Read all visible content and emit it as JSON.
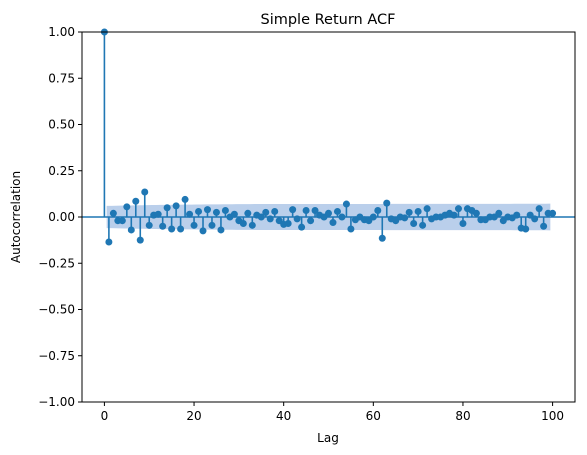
{
  "chart_data": {
    "type": "stem",
    "title": "Simple Return ACF",
    "xlabel": "Lag",
    "ylabel": "Autocorrelation",
    "xlim": [
      -5,
      105
    ],
    "ylim": [
      -1.0,
      1.0
    ],
    "xticks": [
      0,
      20,
      40,
      60,
      80,
      100
    ],
    "yticks": [
      -1.0,
      -0.75,
      -0.5,
      -0.25,
      0.0,
      0.25,
      0.5,
      0.75,
      1.0
    ],
    "xtick_labels": [
      "0",
      "20",
      "40",
      "60",
      "80",
      "100"
    ],
    "ytick_labels": [
      "−1.00",
      "−0.75",
      "−0.50",
      "−0.25",
      "0.00",
      "0.25",
      "0.50",
      "0.75",
      "1.00"
    ],
    "grid": false,
    "legend": "none",
    "colors": {
      "stem": "#1f77b4",
      "confidence_band": "#aec7e8"
    },
    "confidence_band": {
      "start_lag": 1,
      "end_lag": 100,
      "upper": [
        0.06,
        0.065,
        0.068,
        0.07,
        0.07,
        0.07,
        0.071,
        0.071,
        0.071,
        0.072
      ],
      "lower": [
        -0.06,
        -0.065,
        -0.068,
        -0.07,
        -0.07,
        -0.07,
        -0.071,
        -0.071,
        -0.071,
        -0.072
      ]
    },
    "lags": [
      0,
      1,
      2,
      3,
      4,
      5,
      6,
      7,
      8,
      9,
      10,
      11,
      12,
      13,
      14,
      15,
      16,
      17,
      18,
      19,
      20,
      21,
      22,
      23,
      24,
      25,
      26,
      27,
      28,
      29,
      30,
      31,
      32,
      33,
      34,
      35,
      36,
      37,
      38,
      39,
      40,
      41,
      42,
      43,
      44,
      45,
      46,
      47,
      48,
      49,
      50,
      51,
      52,
      53,
      54,
      55,
      56,
      57,
      58,
      59,
      60,
      61,
      62,
      63,
      64,
      65,
      66,
      67,
      68,
      69,
      70,
      71,
      72,
      73,
      74,
      75,
      76,
      77,
      78,
      79,
      80,
      81,
      82,
      83,
      84,
      85,
      86,
      87,
      88,
      89,
      90,
      91,
      92,
      93,
      94,
      95,
      96,
      97,
      98,
      99,
      100
    ],
    "values": [
      1.0,
      -0.135,
      0.02,
      -0.02,
      -0.02,
      0.055,
      -0.07,
      0.085,
      -0.125,
      0.135,
      -0.045,
      0.01,
      0.015,
      -0.05,
      0.05,
      -0.065,
      0.06,
      -0.065,
      0.095,
      0.015,
      -0.045,
      0.03,
      -0.075,
      0.04,
      -0.045,
      0.025,
      -0.07,
      0.035,
      0.0,
      0.015,
      -0.02,
      -0.035,
      0.02,
      -0.045,
      0.01,
      0.0,
      0.025,
      -0.01,
      0.03,
      -0.02,
      -0.04,
      -0.035,
      0.04,
      -0.01,
      -0.055,
      0.035,
      -0.02,
      0.035,
      0.01,
      0.0,
      0.02,
      -0.03,
      0.03,
      0.0,
      0.07,
      -0.065,
      -0.015,
      0.0,
      -0.015,
      -0.02,
      0.0,
      0.035,
      -0.115,
      0.075,
      -0.01,
      -0.02,
      0.0,
      -0.005,
      0.025,
      -0.035,
      0.03,
      -0.045,
      0.045,
      -0.01,
      0.0,
      0.0,
      0.01,
      0.02,
      0.01,
      0.045,
      -0.035,
      0.045,
      0.035,
      0.02,
      -0.015,
      -0.015,
      0.0,
      0.0,
      0.02,
      -0.02,
      0.0,
      -0.005,
      0.01,
      -0.06,
      -0.065,
      0.01,
      -0.01,
      0.045,
      -0.05,
      0.02,
      0.02
    ]
  }
}
